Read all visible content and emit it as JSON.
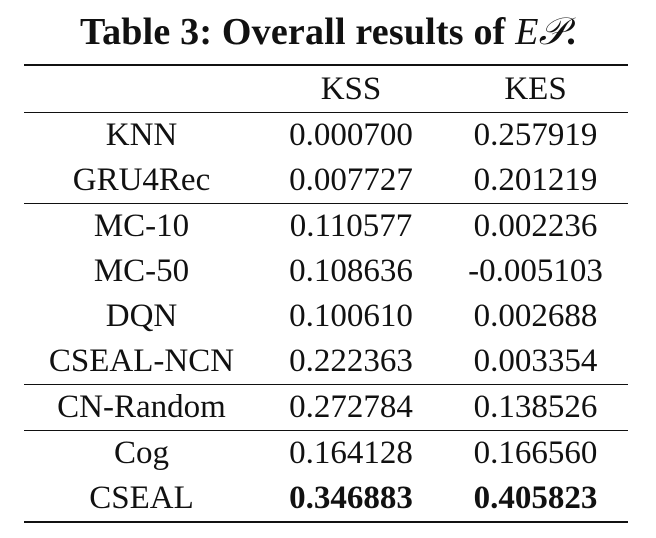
{
  "caption": {
    "prefix": "Table 3: Overall results of ",
    "symbol": "E𝒫",
    "suffix": "."
  },
  "table": {
    "header": [
      "",
      "KSS",
      "KES"
    ],
    "groups": [
      {
        "rows": [
          {
            "method": "KNN",
            "kss": "0.000700",
            "kes": "0.257919"
          },
          {
            "method": "GRU4Rec",
            "kss": "0.007727",
            "kes": "0.201219"
          }
        ]
      },
      {
        "rows": [
          {
            "method": "MC-10",
            "kss": "0.110577",
            "kes": "0.002236"
          },
          {
            "method": "MC-50",
            "kss": "0.108636",
            "kes": "-0.005103"
          },
          {
            "method": "DQN",
            "kss": "0.100610",
            "kes": "0.002688"
          },
          {
            "method": "CSEAL-NCN",
            "kss": "0.222363",
            "kes": "0.003354"
          }
        ]
      },
      {
        "rows": [
          {
            "method": "CN-Random",
            "kss": "0.272784",
            "kes": "0.138526"
          }
        ]
      },
      {
        "rows": [
          {
            "method": "Cog",
            "kss": "0.164128",
            "kes": "0.166560"
          },
          {
            "method": "CSEAL",
            "kss": "0.346883",
            "kes": "0.405823",
            "bold": true
          }
        ]
      }
    ]
  }
}
